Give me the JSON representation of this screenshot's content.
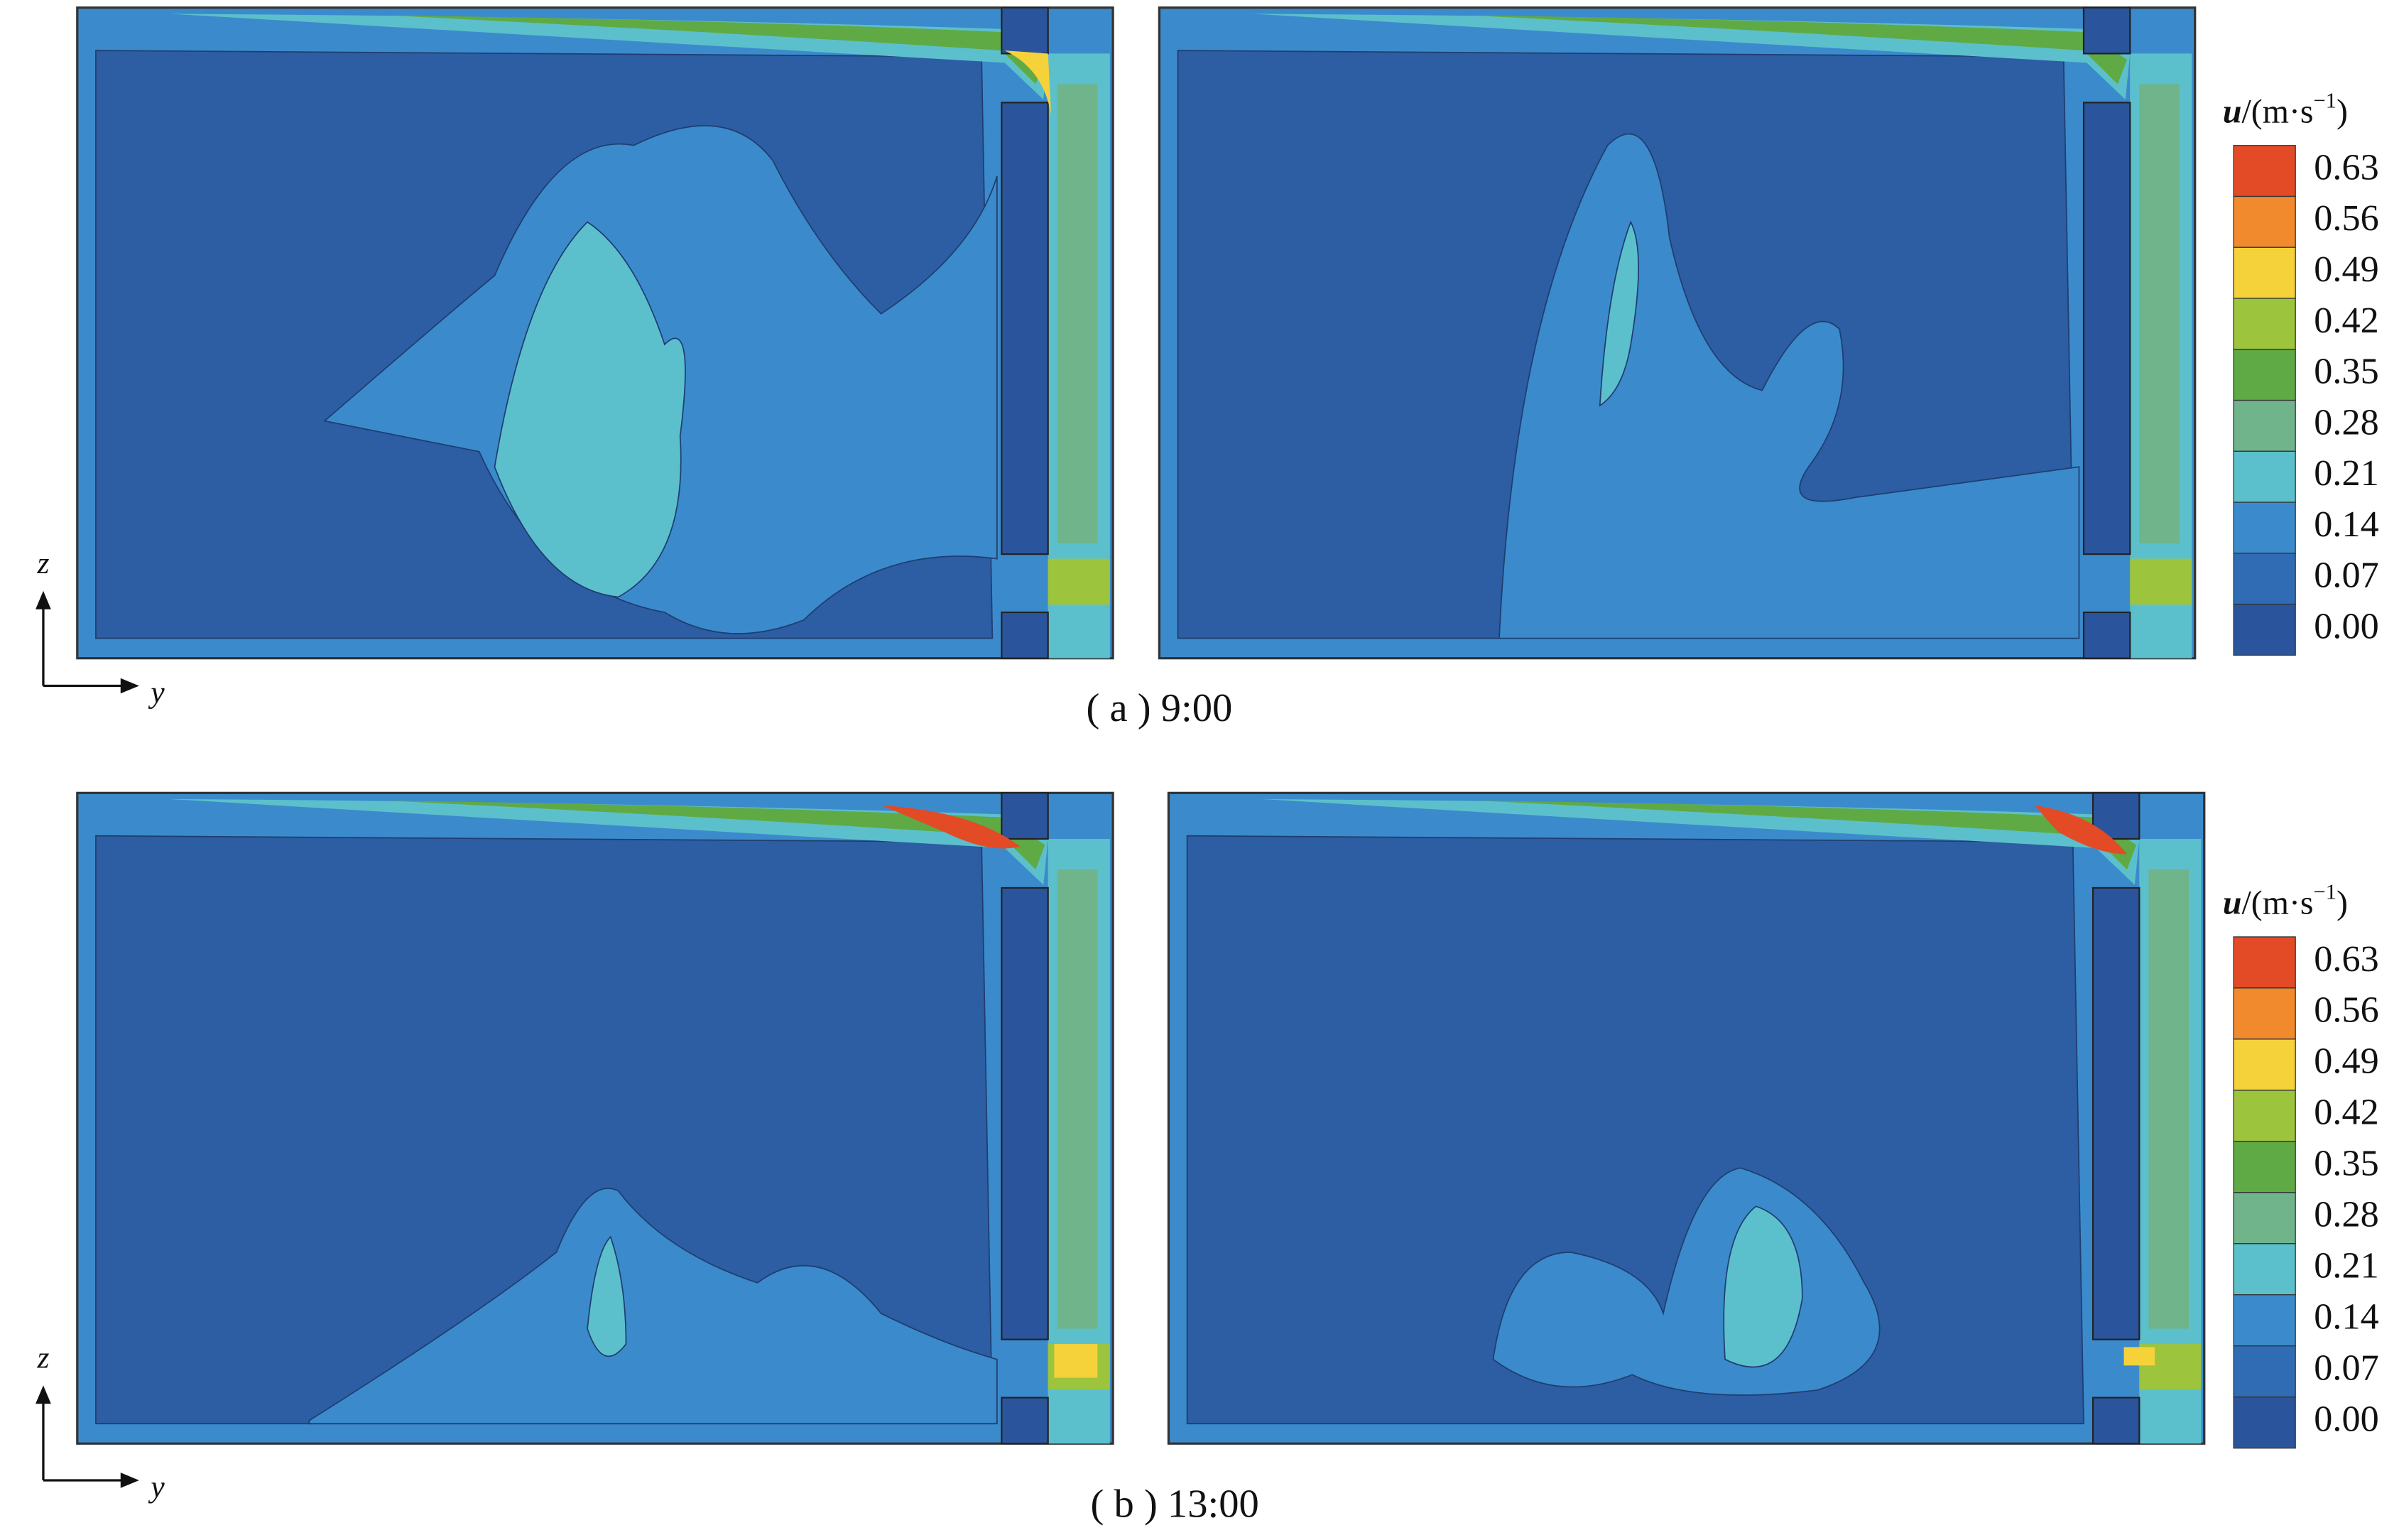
{
  "rows": [
    {
      "caption": "( a ) 9:00",
      "axis": {
        "z": "z",
        "y": "y"
      },
      "colorbar": {
        "title": {
          "symbol": "u",
          "unit": "/(m·s",
          "exponent": "−1",
          "close": ")"
        },
        "levels": [
          {
            "label": "0.63",
            "color": "#e34a26"
          },
          {
            "label": "0.56",
            "color": "#f08a2c"
          },
          {
            "label": "0.49",
            "color": "#f5d23a"
          },
          {
            "label": "0.42",
            "color": "#9cc43c"
          },
          {
            "label": "0.35",
            "color": "#5faa44"
          },
          {
            "label": "0.28",
            "color": "#6fb48a"
          },
          {
            "label": "0.21",
            "color": "#5cc0cc"
          },
          {
            "label": "0.14",
            "color": "#3b8bcc"
          },
          {
            "label": "0.07",
            "color": "#2f6cb3"
          },
          {
            "label": "0.00",
            "color": "#2a559c"
          }
        ]
      }
    },
    {
      "caption": "( b ) 13:00",
      "axis": {
        "z": "z",
        "y": "y"
      },
      "colorbar": {
        "title": {
          "symbol": "u",
          "unit": "/(m·s",
          "exponent": "−1",
          "close": ")"
        },
        "levels": [
          {
            "label": "0.63",
            "color": "#e34a26"
          },
          {
            "label": "0.56",
            "color": "#f08a2c"
          },
          {
            "label": "0.49",
            "color": "#f5d23a"
          },
          {
            "label": "0.42",
            "color": "#9cc43c"
          },
          {
            "label": "0.35",
            "color": "#5faa44"
          },
          {
            "label": "0.28",
            "color": "#6fb48a"
          },
          {
            "label": "0.21",
            "color": "#5cc0cc"
          },
          {
            "label": "0.14",
            "color": "#3b8bcc"
          },
          {
            "label": "0.07",
            "color": "#2f6cb3"
          },
          {
            "label": "0.00",
            "color": "#2a559c"
          }
        ]
      }
    }
  ]
}
